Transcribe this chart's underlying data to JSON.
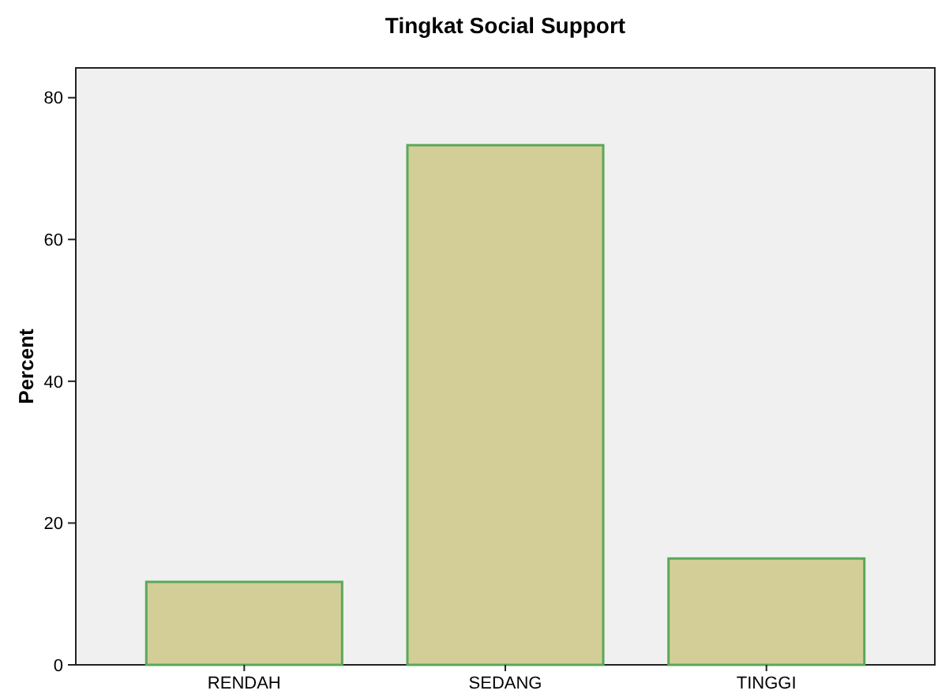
{
  "chart_data": {
    "type": "bar",
    "title": "Tingkat Social Support",
    "ylabel": "Percent",
    "categories": [
      "RENDAH",
      "SEDANG",
      "TINGGI"
    ],
    "series": [
      {
        "color": "#d3ce97",
        "values": [
          11.7,
          73.3,
          15.0
        ]
      }
    ],
    "ylim": [
      0,
      84.2
    ],
    "yticks": [
      0,
      20,
      40,
      60,
      80
    ],
    "grid": false
  }
}
